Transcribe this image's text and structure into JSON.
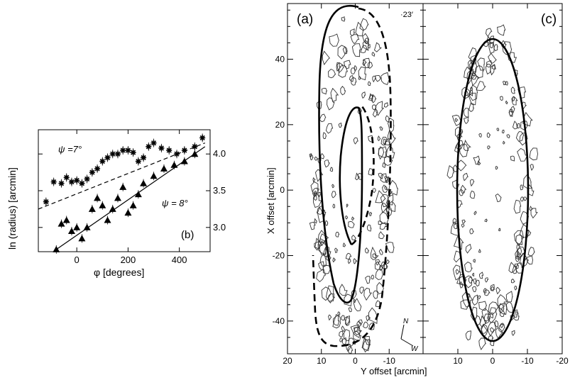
{
  "chart_data": [
    {
      "panel": "(b)",
      "type": "scatter",
      "xlabel": "φ  [degrees]",
      "ylabel": "ln (radius)  [arcmin]",
      "xlim": [
        -150,
        520
      ],
      "ylim": [
        2.67,
        4.33
      ],
      "xticks": [
        0,
        200,
        400
      ],
      "yticks": [
        3.0,
        3.5,
        4.0
      ],
      "series": [
        {
          "name": "ψ =7°",
          "marker": "star",
          "x": [
            -120,
            -90,
            -60,
            -40,
            -20,
            0,
            20,
            40,
            60,
            80,
            100,
            120,
            140,
            160,
            180,
            200,
            220,
            240,
            260,
            280,
            300,
            330,
            360,
            390,
            420,
            460,
            490
          ],
          "y": [
            3.35,
            3.62,
            3.6,
            3.68,
            3.62,
            3.64,
            3.6,
            3.66,
            3.75,
            3.8,
            3.9,
            3.95,
            4.0,
            4.0,
            4.05,
            4.05,
            4.02,
            3.9,
            3.95,
            4.1,
            4.15,
            4.08,
            4.05,
            4.0,
            4.05,
            4.1,
            4.22
          ],
          "fit_line": {
            "x": [
              -150,
              500
            ],
            "y": [
              3.25,
              4.15
            ]
          }
        },
        {
          "name": "ψ = 8°",
          "marker": "triangle",
          "x": [
            -80,
            -60,
            -40,
            -20,
            0,
            20,
            40,
            60,
            80,
            100,
            120,
            140,
            160,
            180,
            200,
            220,
            240,
            260,
            300,
            340,
            380,
            420,
            460
          ],
          "y": [
            2.7,
            3.05,
            3.1,
            2.95,
            3.0,
            2.85,
            3.0,
            3.25,
            3.4,
            3.3,
            3.1,
            3.25,
            3.4,
            3.55,
            3.2,
            3.3,
            3.45,
            3.6,
            3.7,
            3.8,
            3.85,
            3.9,
            4.0
          ],
          "fit_line": {
            "x": [
              -80,
              500
            ],
            "y": [
              2.7,
              4.1
            ]
          }
        }
      ],
      "annotations": [
        "ψ =7°",
        "ψ = 8°",
        "(b)"
      ]
    },
    {
      "panel": "(a)",
      "type": "contour",
      "xlabel": "Y offset [arcmin]",
      "ylabel": "X offset [arcmin]",
      "xlim": [
        20,
        -20
      ],
      "ylim": [
        -50,
        57
      ],
      "xticks": [
        20,
        10,
        0,
        -10
      ],
      "xtick_labels": [
        "20",
        "10",
        "0",
        "-10"
      ],
      "yticks": [
        -40,
        -20,
        0,
        20,
        40
      ],
      "annotations": [
        "(a)",
        "·23′",
        "N",
        "W"
      ]
    },
    {
      "panel": "(c)",
      "type": "contour",
      "xlim": [
        20,
        -20
      ],
      "ylim": [
        -50,
        57
      ],
      "xticks": [
        10,
        0,
        -10,
        -20
      ],
      "xtick_labels": [
        "10",
        "0",
        "-10",
        "-20"
      ],
      "annotations": [
        "(c)"
      ]
    }
  ],
  "labels": {
    "b_ylabel": "ln (radius)  [arcmin]",
    "b_xlabel": "φ  [degrees]",
    "b_psi7": "ψ =7°",
    "b_psi8": "ψ = 8°",
    "b_tag": "(b)",
    "a_tag": "(a)",
    "a_scale": "·23′",
    "c_tag": "(c)",
    "ac_ylabel": "X offset [arcmin]",
    "ac_xlabel": "Y offset [arcmin]",
    "north": "N",
    "west": "W"
  }
}
